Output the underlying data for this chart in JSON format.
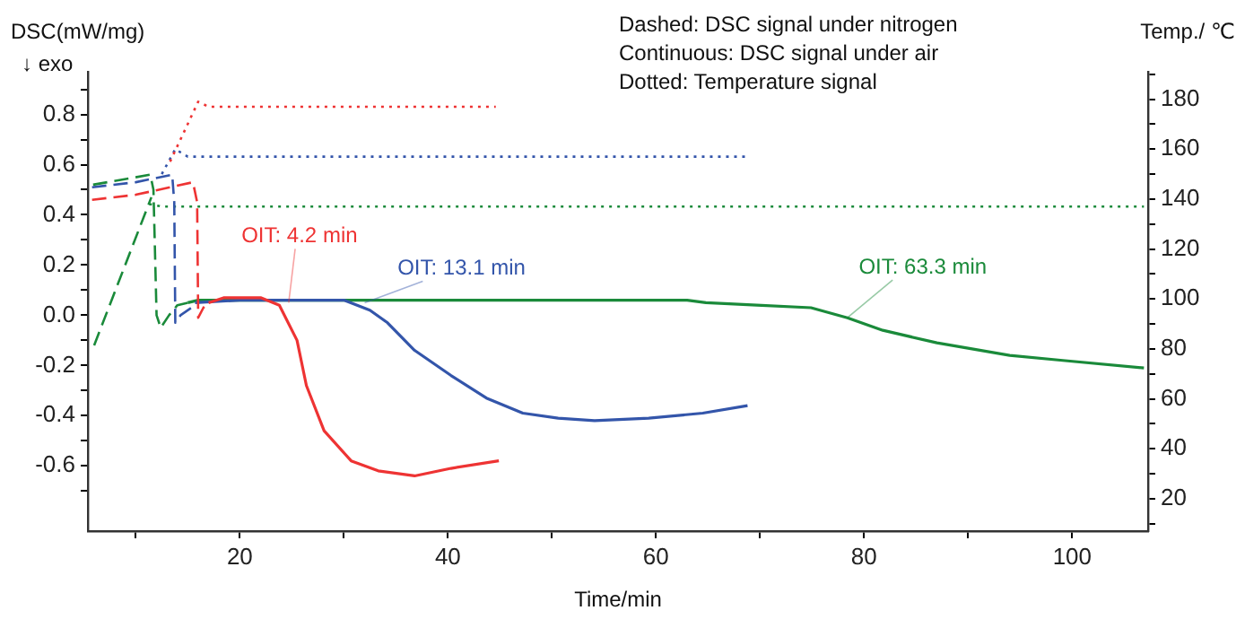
{
  "chart_data": {
    "type": "line",
    "xlabel": "Time/min",
    "ylabel": "DSC(mW/mg)",
    "y2label": "Temp./ ℃",
    "annotations": [
      "↓ exo",
      "Dashed: DSC signal under nitrogen",
      "Continuous: DSC signal under air",
      "Dotted: Temperature signal",
      {
        "text": "OIT: 4.2 min",
        "x": 24.7,
        "y": 0.05
      },
      {
        "text": "OIT: 13.1 min",
        "x": 32.0,
        "y": 0.05
      },
      {
        "text": "OIT: 63.3 min",
        "x": 78.4,
        "y": -0.01
      }
    ],
    "xlim": [
      5.4,
      107.3
    ],
    "xticks": [
      {
        "value": 10,
        "label": null
      },
      20,
      {
        "value": 30,
        "label": null
      },
      40,
      {
        "value": 50,
        "label": null
      },
      60,
      {
        "value": 70,
        "label": null
      },
      80,
      {
        "value": 90,
        "label": null
      },
      100
    ],
    "ylim": [
      -0.86,
      0.97
    ],
    "yticks": [
      {
        "value": -0.7,
        "label": null
      },
      -0.6,
      {
        "value": -0.5,
        "label": null
      },
      -0.4,
      {
        "value": -0.3,
        "label": null
      },
      -0.2,
      {
        "value": -0.1,
        "label": null
      },
      {
        "value": 0,
        "label": "0.0"
      },
      {
        "value": 0.1,
        "label": null
      },
      0.2,
      {
        "value": 0.3,
        "label": null
      },
      0.4,
      {
        "value": 0.5,
        "label": null
      },
      0.6,
      {
        "value": 0.7,
        "label": null
      },
      0.8,
      {
        "value": 0.9,
        "label": null
      }
    ],
    "y2lim": [
      7,
      191
    ],
    "y2ticks": [
      {
        "value": 10,
        "label": null
      },
      20,
      {
        "value": 30,
        "label": null
      },
      40,
      {
        "value": 50,
        "label": null
      },
      60,
      {
        "value": 70,
        "label": null
      },
      80,
      {
        "value": 90,
        "label": null
      },
      100,
      {
        "value": 110,
        "label": null
      },
      120,
      {
        "value": 130,
        "label": null
      },
      140,
      {
        "value": 150,
        "label": null
      },
      160,
      {
        "value": 170,
        "label": null
      },
      180,
      {
        "value": 190,
        "label": null
      }
    ],
    "grid": false,
    "legend": false,
    "marker": "none",
    "series": [
      {
        "color": "#ee3333",
        "line_style": "dashed",
        "x": [
          5.8,
          10.0,
          15.5,
          15.9,
          16.0,
          16.5,
          17.0
        ],
        "values": [
          0.46,
          0.48,
          0.53,
          0.45,
          -0.01,
          0.03,
          0.05
        ]
      },
      {
        "color": "#3355aa",
        "line_style": "dashed",
        "x": [
          5.8,
          10.0,
          13.5,
          13.7,
          13.8,
          14.3,
          15.7
        ],
        "values": [
          0.51,
          0.53,
          0.56,
          0.45,
          -0.03,
          0.0,
          0.04
        ]
      },
      {
        "color": "#1a8a3a",
        "line_style": "dashed",
        "x": [
          6.0,
          11.5
        ],
        "values": [
          -0.12,
          0.47
        ]
      },
      {
        "color": "#1a8a3a",
        "line_style": "dashed",
        "x": [
          5.9,
          11.4,
          11.7,
          12.0,
          12.4,
          13.2,
          14.0,
          15.0
        ],
        "values": [
          0.52,
          0.56,
          0.5,
          0.0,
          -0.05,
          0.0,
          0.04,
          0.05
        ]
      },
      {
        "color": "#ee3333",
        "line_style": "solid",
        "x": [
          17.0,
          18.5,
          22.0,
          23.8,
          25.5,
          26.4,
          28.1,
          30.7,
          33.3,
          36.8,
          40.3,
          44.9
        ],
        "values": [
          0.05,
          0.07,
          0.07,
          0.04,
          -0.1,
          -0.28,
          -0.46,
          -0.58,
          -0.62,
          -0.64,
          -0.61,
          -0.58
        ]
      },
      {
        "color": "#3355aa",
        "line_style": "solid",
        "x": [
          15.7,
          20.0,
          30.0,
          32.5,
          34.2,
          36.8,
          40.3,
          43.7,
          47.2,
          50.6,
          54.1,
          59.3,
          64.5,
          68.8
        ],
        "values": [
          0.05,
          0.06,
          0.06,
          0.02,
          -0.03,
          -0.14,
          -0.24,
          -0.33,
          -0.39,
          -0.41,
          -0.42,
          -0.41,
          -0.39,
          -0.36
        ]
      },
      {
        "color": "#1a8a3a",
        "line_style": "solid",
        "x": [
          15.0,
          16.0,
          63.0,
          64.8,
          69.7,
          74.9,
          78.4,
          81.8,
          87.0,
          94.0,
          99.1,
          106.9
        ],
        "values": [
          0.05,
          0.06,
          0.06,
          0.05,
          0.04,
          0.03,
          -0.01,
          -0.06,
          -0.11,
          -0.16,
          -0.18,
          -0.21
        ]
      },
      {
        "color": "#ee3333",
        "line_style": "dotted",
        "axis": "y2",
        "x": [
          13.3,
          16.0,
          17.0,
          44.6
        ],
        "values": [
          155,
          179,
          177,
          177
        ]
      },
      {
        "color": "#3355aa",
        "line_style": "dotted",
        "axis": "y2",
        "x": [
          12.5,
          13.8,
          15.0,
          68.8
        ],
        "values": [
          150,
          160,
          157,
          157
        ]
      },
      {
        "color": "#1a8a3a",
        "line_style": "dotted",
        "axis": "y2",
        "x": [
          11.3,
          12.5,
          106.9
        ],
        "values": [
          138,
          137,
          137
        ]
      }
    ]
  }
}
